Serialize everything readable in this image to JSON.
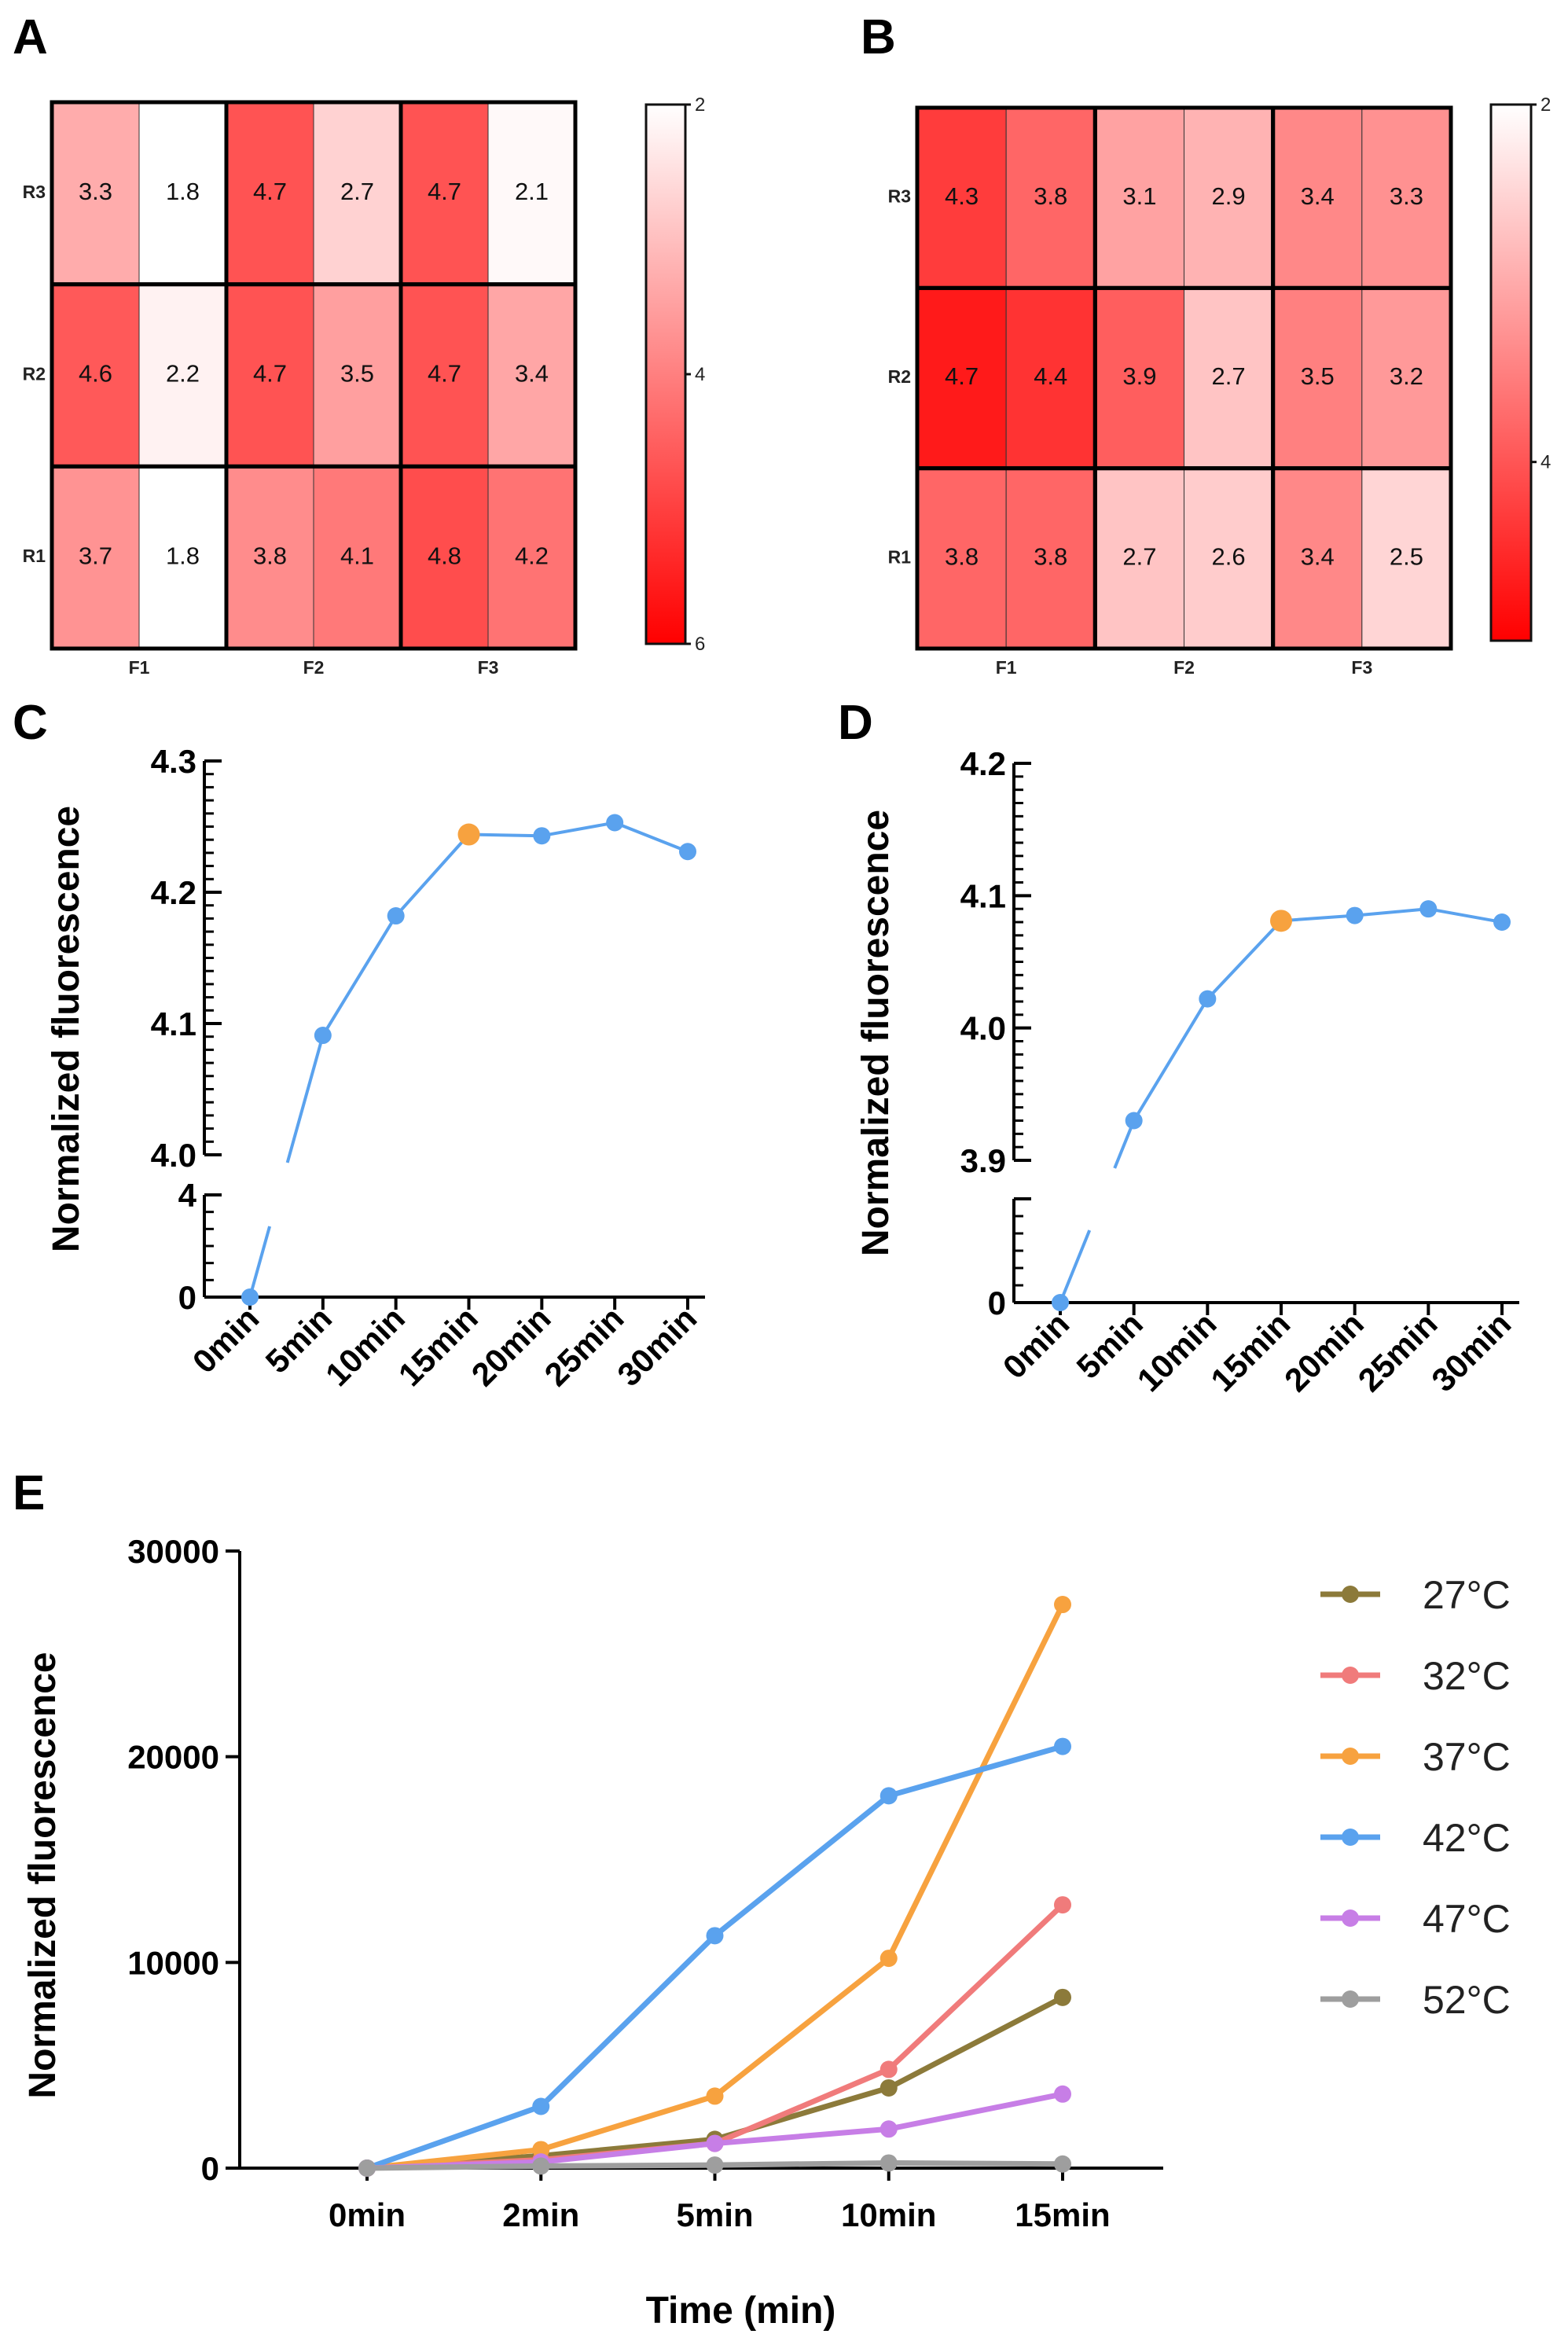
{
  "panels": {
    "A": "A",
    "B": "B",
    "C": "C",
    "D": "D",
    "E": "E"
  },
  "chart_data": [
    {
      "id": "A",
      "type": "heatmap",
      "title": "",
      "rows": [
        "R3",
        "R2",
        "R1"
      ],
      "column_groups": [
        "F1",
        "F2",
        "F3"
      ],
      "values": [
        [
          3.3,
          1.8,
          4.7,
          2.7,
          4.7,
          2.1
        ],
        [
          4.6,
          2.2,
          4.7,
          3.5,
          4.7,
          3.4
        ],
        [
          3.7,
          1.8,
          3.8,
          4.1,
          4.8,
          4.2
        ]
      ],
      "colorbar": {
        "min": 2,
        "max": 6,
        "ticks": [
          "2",
          "4",
          "6"
        ],
        "low_color": "#ffffff",
        "high_color": "#ff0000"
      }
    },
    {
      "id": "B",
      "type": "heatmap",
      "title": "",
      "rows": [
        "R3",
        "R2",
        "R1"
      ],
      "column_groups": [
        "F1",
        "F2",
        "F3"
      ],
      "values": [
        [
          4.3,
          3.8,
          3.1,
          2.9,
          3.4,
          3.3
        ],
        [
          4.7,
          4.4,
          3.9,
          2.7,
          3.5,
          3.2
        ],
        [
          3.8,
          3.8,
          2.7,
          2.6,
          3.4,
          2.5
        ]
      ],
      "colorbar": {
        "min": 2,
        "max": 5,
        "ticks": [
          "2",
          "4"
        ],
        "low_color": "#ffffff",
        "high_color": "#ff0000"
      }
    },
    {
      "id": "C",
      "type": "line",
      "categories": [
        "0min",
        "5min",
        "10min",
        "15min",
        "20min",
        "25min",
        "30min"
      ],
      "values": [
        0,
        4.091,
        4.182,
        4.244,
        4.243,
        4.253,
        4.231
      ],
      "highlight_index": 3,
      "ylabel": "Normalized fluorescence",
      "xlabel": "",
      "y_upper_range": [
        4.0,
        4.3
      ],
      "y_upper_ticks": [
        "4.0",
        "4.1",
        "4.2",
        "4.3"
      ],
      "y_lower_range": [
        0,
        4
      ],
      "y_lower_ticks": [
        "0",
        "4"
      ],
      "line_color": "#5aa2ee",
      "highlight_color": "#f7a23f"
    },
    {
      "id": "D",
      "type": "line",
      "categories": [
        "0min",
        "5min",
        "10min",
        "15min",
        "20min",
        "25min",
        "30min"
      ],
      "values": [
        0,
        3.93,
        4.022,
        4.081,
        4.085,
        4.09,
        4.08
      ],
      "highlight_index": 3,
      "ylabel": "Normalized fluorescence",
      "xlabel": "",
      "y_upper_range": [
        3.9,
        4.2
      ],
      "y_upper_ticks": [
        "3.9",
        "4.0",
        "4.1",
        "4.2"
      ],
      "y_lower_range": [
        0,
        3.9
      ],
      "y_lower_ticks": [
        "0"
      ],
      "line_color": "#5aa2ee",
      "highlight_color": "#f7a23f"
    },
    {
      "id": "E",
      "type": "line",
      "categories": [
        "0min",
        "2min",
        "5min",
        "10min",
        "15min"
      ],
      "xlabel": "Time (min)",
      "ylabel": "Normalized fluorescence",
      "ylim": [
        0,
        30000
      ],
      "y_ticks": [
        "0",
        "10000",
        "20000",
        "30000"
      ],
      "legend_position": "right",
      "series": [
        {
          "name": "27°C",
          "color": "#8c7a3a",
          "values": [
            0,
            600,
            1400,
            3900,
            8300
          ]
        },
        {
          "name": "32°C",
          "color": "#f07b7b",
          "values": [
            0,
            400,
            1200,
            4800,
            12800
          ]
        },
        {
          "name": "37°C",
          "color": "#f7a23f",
          "values": [
            0,
            900,
            3500,
            10200,
            27400
          ]
        },
        {
          "name": "42°C",
          "color": "#5aa2ee",
          "values": [
            0,
            3000,
            11300,
            18100,
            20500
          ]
        },
        {
          "name": "47°C",
          "color": "#c77ee6",
          "values": [
            0,
            300,
            1200,
            1900,
            3600
          ]
        },
        {
          "name": "52°C",
          "color": "#9e9e9e",
          "values": [
            0,
            100,
            150,
            250,
            200
          ]
        }
      ]
    }
  ]
}
